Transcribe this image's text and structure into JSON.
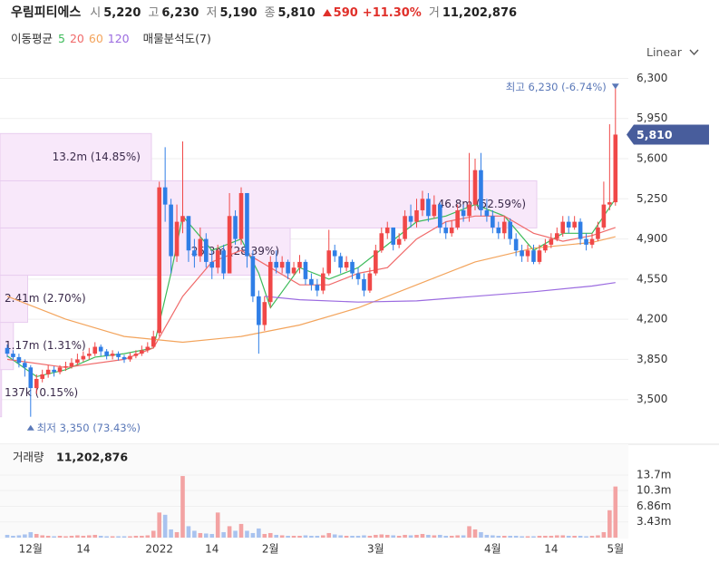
{
  "header": {
    "name": "우림피티에스",
    "fields": [
      {
        "key": "시",
        "value": "5,220"
      },
      {
        "key": "고",
        "value": "6,230"
      },
      {
        "key": "저",
        "value": "5,190"
      },
      {
        "key": "종",
        "value": "5,810"
      }
    ],
    "change": "590",
    "change_pct": "+11.30%",
    "volume_key": "거",
    "volume": "11,202,876"
  },
  "indicators": {
    "ma_label": "이동평균",
    "profile_label": "매물분석도(7)"
  },
  "scale_mode": "Linear",
  "chart_data": [
    {
      "type": "candlestick",
      "up_color": "#f04848",
      "down_color": "#2f7ee6",
      "open": [
        3950,
        3900,
        3870,
        3820,
        3780,
        3600,
        3680,
        3720,
        3760,
        3740,
        3780,
        3790,
        3820,
        3850,
        3880,
        3900,
        3960,
        3920,
        3880,
        3900,
        3870,
        3850,
        3880,
        3900,
        3930,
        3960,
        4080,
        5350,
        5200,
        4750,
        5050,
        5100,
        4800,
        4750,
        4900,
        4700,
        4650,
        4800,
        4600,
        5100,
        4900,
        5300,
        4750,
        4400,
        4150,
        4350,
        4700,
        4650,
        4700,
        4600,
        4650,
        4700,
        4550,
        4500,
        4450,
        4600,
        4800,
        4750,
        4650,
        4700,
        4600,
        4550,
        4450,
        4600,
        4800,
        4950,
        5000,
        4850,
        4900,
        5100,
        5050,
        5150,
        5250,
        5100,
        5200,
        5000,
        4950,
        5000,
        5150,
        5100,
        5200,
        5500,
        5150,
        5100,
        5000,
        4950,
        5050,
        4900,
        4800,
        4750,
        4800,
        4700,
        4800,
        4850,
        4900,
        4950,
        5050,
        5000,
        5050,
        4900,
        4850,
        4900,
        5000,
        5200,
        5220
      ],
      "high": [
        3980,
        3930,
        3900,
        3850,
        3800,
        3720,
        3760,
        3800,
        3790,
        3800,
        3830,
        3860,
        3900,
        3920,
        3950,
        4000,
        3980,
        3940,
        3930,
        3920,
        3890,
        3910,
        3930,
        3970,
        4000,
        4100,
        5400,
        5700,
        5250,
        5200,
        5750,
        5100,
        4900,
        5000,
        4950,
        4800,
        4850,
        4850,
        5300,
        5150,
        5350,
        5300,
        4800,
        4450,
        4400,
        4750,
        4800,
        4750,
        4720,
        4700,
        4760,
        4720,
        4600,
        4550,
        4650,
        4980,
        4850,
        4780,
        4750,
        4720,
        4650,
        4600,
        4650,
        4850,
        5000,
        5050,
        5000,
        4950,
        5150,
        5200,
        5250,
        5320,
        5300,
        5280,
        5220,
        5050,
        5060,
        5200,
        5200,
        5650,
        5600,
        5650,
        5250,
        5150,
        5050,
        5100,
        5080,
        4950,
        4850,
        4850,
        4850,
        4850,
        4900,
        4950,
        5000,
        5100,
        5100,
        5100,
        5080,
        4950,
        4950,
        5050,
        5400,
        5900,
        6230
      ],
      "low": [
        3870,
        3840,
        3780,
        3700,
        3350,
        3550,
        3650,
        3690,
        3700,
        3720,
        3750,
        3770,
        3800,
        3830,
        3850,
        3880,
        3880,
        3850,
        3850,
        3840,
        3820,
        3830,
        3860,
        3880,
        3910,
        3950,
        4050,
        5050,
        4600,
        4700,
        4950,
        4700,
        4650,
        4700,
        4650,
        4550,
        4600,
        4550,
        4600,
        4850,
        4850,
        4650,
        4350,
        3900,
        4100,
        4300,
        4600,
        4600,
        4550,
        4580,
        4600,
        4500,
        4450,
        4400,
        4420,
        4580,
        4700,
        4600,
        4620,
        4550,
        4500,
        4400,
        4430,
        4580,
        4780,
        4900,
        4800,
        4820,
        4880,
        5000,
        5000,
        5100,
        5050,
        5080,
        4950,
        4900,
        4920,
        4980,
        5050,
        5050,
        5150,
        5100,
        5050,
        4950,
        4900,
        4900,
        4850,
        4750,
        4700,
        4700,
        4680,
        4680,
        4780,
        4820,
        4880,
        4920,
        4950,
        4980,
        4850,
        4800,
        4820,
        4880,
        4980,
        5150,
        5190
      ],
      "close": [
        3900,
        3870,
        3820,
        3780,
        3600,
        3680,
        3720,
        3760,
        3740,
        3780,
        3790,
        3820,
        3850,
        3880,
        3900,
        3960,
        3920,
        3880,
        3900,
        3870,
        3850,
        3880,
        3900,
        3930,
        3960,
        4050,
        5350,
        5200,
        4750,
        5050,
        5100,
        4800,
        4750,
        4900,
        4700,
        4650,
        4800,
        4600,
        5100,
        4900,
        5300,
        4750,
        4400,
        4150,
        4350,
        4700,
        4650,
        4700,
        4600,
        4650,
        4700,
        4550,
        4500,
        4450,
        4600,
        4800,
        4750,
        4650,
        4700,
        4600,
        4550,
        4450,
        4600,
        4800,
        4950,
        5000,
        4850,
        4900,
        5100,
        5050,
        5150,
        5250,
        5100,
        5200,
        5000,
        4950,
        5000,
        5150,
        5100,
        5200,
        5500,
        5150,
        5100,
        5000,
        4950,
        5050,
        4900,
        4800,
        4750,
        4800,
        4700,
        4800,
        4850,
        4900,
        4950,
        5050,
        5000,
        5050,
        4900,
        4850,
        4900,
        5000,
        5200,
        5220,
        5810
      ],
      "ylim": [
        3150,
        6430
      ],
      "yticks": [
        {
          "value": 3500,
          "label": "3,500"
        },
        {
          "value": 3850,
          "label": "3,850"
        },
        {
          "value": 4200,
          "label": "4,200"
        },
        {
          "value": 4550,
          "label": "4,550"
        },
        {
          "value": 4900,
          "label": "4,900"
        },
        {
          "value": 5250,
          "label": "5,250"
        },
        {
          "value": 5600,
          "label": "5,600"
        },
        {
          "value": 5950,
          "label": "5,950"
        },
        {
          "value": 6300,
          "label": "6,300"
        }
      ],
      "grid": true,
      "series": [
        {
          "name": "5",
          "color": "#3dbb5a",
          "x": [
            0,
            5,
            10,
            15,
            20,
            25,
            28,
            30,
            35,
            40,
            43,
            45,
            50,
            55,
            60,
            65,
            70,
            75,
            80,
            85,
            90,
            95,
            100,
            104
          ],
          "values": [
            3880,
            3700,
            3760,
            3870,
            3900,
            3950,
            4600,
            5100,
            4800,
            4900,
            4600,
            4300,
            4650,
            4550,
            4650,
            4850,
            5050,
            5100,
            5200,
            5100,
            4800,
            4950,
            4950,
            5250
          ]
        },
        {
          "name": "20",
          "color": "#f06a6a",
          "x": [
            0,
            10,
            20,
            25,
            30,
            35,
            40,
            45,
            50,
            55,
            60,
            65,
            70,
            75,
            80,
            85,
            90,
            95,
            100,
            104
          ],
          "values": [
            3850,
            3780,
            3850,
            3950,
            4400,
            4700,
            4800,
            4650,
            4500,
            4500,
            4600,
            4650,
            4900,
            5050,
            5100,
            5100,
            4950,
            4880,
            4930,
            5000
          ]
        },
        {
          "name": "60",
          "color": "#f3a45c",
          "x": [
            0,
            10,
            20,
            30,
            40,
            50,
            60,
            70,
            80,
            90,
            100,
            104
          ],
          "values": [
            4400,
            4200,
            4050,
            4000,
            4050,
            4150,
            4300,
            4500,
            4700,
            4820,
            4870,
            4920
          ]
        },
        {
          "name": "120",
          "color": "#9b6be0",
          "x": [
            44,
            50,
            60,
            70,
            80,
            90,
            100,
            104
          ],
          "values": [
            4400,
            4370,
            4350,
            4360,
            4400,
            4440,
            4490,
            4520
          ]
        }
      ],
      "volume_profile": {
        "bins": [
          3350,
          3761,
          4173,
          4584,
          4996,
          5407,
          5819
        ],
        "values": [
          0.137,
          1.17,
          2.41,
          25.3,
          46.8,
          13.2
        ],
        "value_labels": [
          "137k (0.15%)",
          "1.17m (1.31%)",
          "2.41m (2.70%)",
          "25.3m (28.39%)",
          "46.8m (52.59%)",
          "13.2m (14.85%)"
        ]
      },
      "high_marker": {
        "value": 6230,
        "label": "최고 6,230 (-6.74%)"
      },
      "low_marker": {
        "value": 3350,
        "label": "최저 3,350 (73.43%)"
      },
      "current_price": {
        "value": 5810,
        "label": "5,810"
      }
    },
    {
      "type": "bar",
      "title": "거래량",
      "title_value": "11,202,876",
      "up_color": "#f3a3a3",
      "down_color": "#a9c3ef",
      "categories": [
        null,
        null,
        null,
        null,
        "12월",
        null,
        null,
        null,
        null,
        null,
        null,
        null,
        null,
        "14",
        null,
        null,
        null,
        null,
        null,
        null,
        null,
        null,
        null,
        null,
        null,
        null,
        "2022",
        null,
        null,
        null,
        null,
        null,
        null,
        null,
        null,
        "14",
        null,
        null,
        null,
        null,
        null,
        null,
        null,
        null,
        null,
        "2월",
        null,
        null,
        null,
        null,
        null,
        null,
        null,
        null,
        null,
        null,
        null,
        null,
        null,
        null,
        null,
        null,
        null,
        "3월",
        null,
        null,
        null,
        null,
        null,
        null,
        null,
        null,
        null,
        null,
        null,
        null,
        null,
        null,
        null,
        null,
        null,
        null,
        null,
        "4월",
        null,
        null,
        null,
        null,
        null,
        null,
        null,
        null,
        null,
        "14",
        null,
        null,
        null,
        null,
        null,
        null,
        null,
        null,
        null,
        null,
        "5월"
      ],
      "values": [
        0.6,
        0.4,
        0.5,
        0.7,
        1.2,
        0.8,
        0.5,
        0.4,
        0.3,
        0.4,
        0.3,
        0.4,
        0.5,
        0.4,
        0.5,
        0.6,
        0.4,
        0.3,
        0.3,
        0.3,
        0.3,
        0.3,
        0.4,
        0.4,
        0.5,
        1.5,
        5.5,
        5.0,
        1.8,
        1.2,
        13.5,
        2.5,
        1.5,
        1.0,
        0.9,
        0.8,
        5.5,
        1.2,
        2.5,
        1.5,
        3.0,
        1.5,
        1.0,
        2.0,
        0.8,
        1.0,
        0.6,
        0.5,
        0.4,
        0.4,
        0.4,
        0.5,
        0.4,
        0.4,
        0.5,
        1.0,
        0.7,
        0.5,
        0.4,
        0.4,
        0.4,
        0.5,
        0.4,
        0.6,
        0.7,
        0.6,
        0.5,
        0.4,
        0.6,
        0.5,
        0.6,
        0.8,
        0.6,
        0.5,
        0.6,
        0.4,
        0.4,
        0.5,
        0.5,
        2.5,
        1.8,
        1.2,
        0.6,
        0.5,
        0.4,
        0.4,
        0.4,
        0.4,
        0.3,
        0.3,
        0.3,
        0.4,
        0.4,
        0.4,
        0.5,
        0.5,
        0.4,
        0.4,
        0.4,
        0.3,
        0.4,
        0.5,
        1.2,
        6.0,
        11.2
      ],
      "ylim": [
        0,
        15.5
      ],
      "yticks": [
        {
          "value": 3.43,
          "label": "3.43m"
        },
        {
          "value": 6.86,
          "label": "6.86m"
        },
        {
          "value": 10.3,
          "label": "10.3m"
        },
        {
          "value": 13.7,
          "label": "13.7m"
        }
      ]
    }
  ]
}
